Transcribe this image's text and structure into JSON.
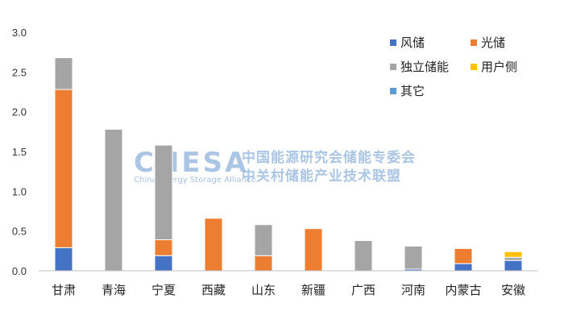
{
  "chart_data": {
    "type": "bar",
    "stacked": true,
    "categories": [
      "甘肃",
      "青海",
      "宁夏",
      "西藏",
      "山东",
      "新疆",
      "广西",
      "河南",
      "内蒙古",
      "安徽"
    ],
    "series": [
      {
        "name": "风储",
        "color": "#4472c4",
        "values": [
          0.29,
          0.0,
          0.19,
          0.0,
          0.0,
          0.0,
          0.0,
          0.02,
          0.09,
          0.13
        ]
      },
      {
        "name": "光储",
        "color": "#ed7d31",
        "values": [
          1.99,
          0.0,
          0.2,
          0.66,
          0.19,
          0.53,
          0.0,
          0.0,
          0.19,
          0.0
        ]
      },
      {
        "name": "独立储能",
        "color": "#a5a5a5",
        "values": [
          0.4,
          1.78,
          1.19,
          0.0,
          0.39,
          0.0,
          0.38,
          0.29,
          0.0,
          0.04
        ]
      },
      {
        "name": "用户侧",
        "color": "#ffc000",
        "values": [
          0.0,
          0.0,
          0.0,
          0.0,
          0.0,
          0.0,
          0.0,
          0.0,
          0.0,
          0.07
        ]
      },
      {
        "name": "其它",
        "color": "#5b9bd5",
        "values": [
          0.0,
          0.0,
          0.0,
          0.0,
          0.0,
          0.0,
          0.0,
          0.0,
          0.0,
          0.0
        ]
      }
    ],
    "ylim": [
      0,
      3.0
    ],
    "yticks": [
      "0.0",
      "0.5",
      "1.0",
      "1.5",
      "2.0",
      "2.5",
      "3.0"
    ],
    "grid": false,
    "legend_position": "top-right"
  },
  "watermark": {
    "logo": "CNESA",
    "subtitle": "China Energy Storage Alliance",
    "line1": "中国能源研究会储能专委会",
    "line2": "中关村储能产业技术联盟"
  }
}
